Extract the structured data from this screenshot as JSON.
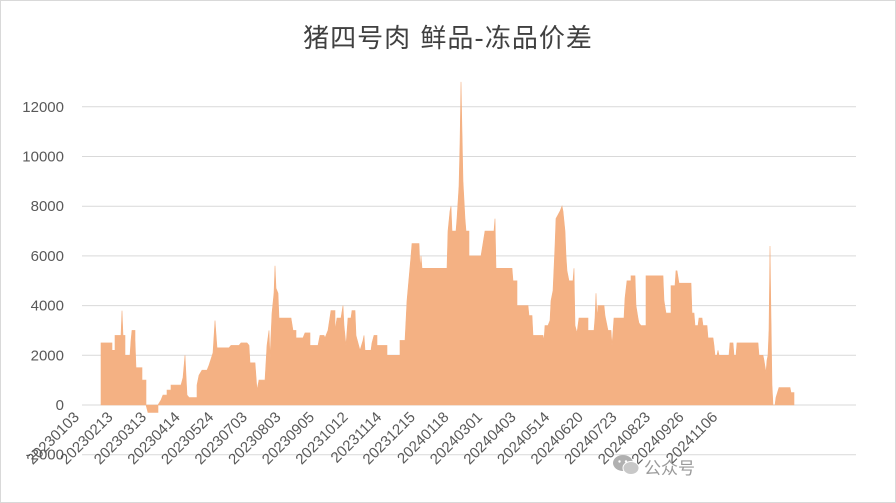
{
  "chart_data": {
    "type": "area",
    "title": "猪四号肉 鲜品-冻品价差",
    "ylim": [
      -2000,
      13000
    ],
    "yticks": [
      -2000,
      0,
      2000,
      4000,
      6000,
      8000,
      10000,
      12000
    ],
    "ytick_labels": [
      "-2000",
      "0",
      "2000",
      "4000",
      "6000",
      "8000",
      "10000",
      "12000"
    ],
    "xtick_labels": [
      "20230103",
      "20230213",
      "20230313",
      "20230414",
      "20230524",
      "20230703",
      "20230803",
      "20230905",
      "20231012",
      "20231114",
      "20231215",
      "20240118",
      "20240301",
      "20240403",
      "20240514",
      "20240620",
      "20240723",
      "20240823",
      "20240926",
      "20241106"
    ],
    "grid": true,
    "color": "#F4B183",
    "series_points": [
      [
        0,
        0
      ],
      [
        0,
        2500
      ],
      [
        11,
        2500
      ],
      [
        11,
        2200
      ],
      [
        14,
        2200
      ],
      [
        14,
        2800
      ],
      [
        20,
        2800
      ],
      [
        21,
        3800
      ],
      [
        22,
        2800
      ],
      [
        24,
        2800
      ],
      [
        24,
        2000
      ],
      [
        29,
        2000
      ],
      [
        30,
        2600
      ],
      [
        31,
        3000
      ],
      [
        34,
        3000
      ],
      [
        34,
        2600
      ],
      [
        35,
        1500
      ],
      [
        41,
        1500
      ],
      [
        41,
        1000
      ],
      [
        45,
        1000
      ],
      [
        45,
        0
      ],
      [
        47,
        -300
      ],
      [
        57,
        -300
      ],
      [
        57,
        0
      ],
      [
        60,
        200
      ],
      [
        62,
        400
      ],
      [
        66,
        400
      ],
      [
        66,
        600
      ],
      [
        70,
        600
      ],
      [
        70,
        800
      ],
      [
        80,
        800
      ],
      [
        82,
        1100
      ],
      [
        84,
        2000
      ],
      [
        86,
        400
      ],
      [
        88,
        300
      ],
      [
        96,
        300
      ],
      [
        96,
        800
      ],
      [
        98,
        1200
      ],
      [
        101,
        1400
      ],
      [
        106,
        1400
      ],
      [
        108,
        1600
      ],
      [
        112,
        2100
      ],
      [
        114,
        3400
      ],
      [
        116,
        2300
      ],
      [
        128,
        2300
      ],
      [
        130,
        2400
      ],
      [
        138,
        2400
      ],
      [
        140,
        2500
      ],
      [
        146,
        2500
      ],
      [
        148,
        2400
      ],
      [
        149,
        1700
      ],
      [
        154,
        1700
      ],
      [
        156,
        600
      ],
      [
        158,
        1000
      ],
      [
        164,
        1000
      ],
      [
        166,
        2400
      ],
      [
        168,
        3000
      ],
      [
        169,
        1900
      ],
      [
        171,
        3700
      ],
      [
        173,
        4500
      ],
      [
        174,
        5600
      ],
      [
        175,
        4700
      ],
      [
        177,
        4500
      ],
      [
        178,
        3500
      ],
      [
        190,
        3500
      ],
      [
        192,
        3000
      ],
      [
        195,
        3000
      ],
      [
        195,
        2700
      ],
      [
        202,
        2700
      ],
      [
        204,
        2900
      ],
      [
        209,
        2900
      ],
      [
        209,
        2400
      ],
      [
        217,
        2400
      ],
      [
        219,
        2800
      ],
      [
        223,
        2800
      ],
      [
        224,
        2700
      ],
      [
        227,
        3000
      ],
      [
        230,
        3800
      ],
      [
        234,
        3800
      ],
      [
        234,
        3000
      ],
      [
        236,
        3500
      ],
      [
        240,
        3500
      ],
      [
        242,
        4000
      ],
      [
        243,
        3200
      ],
      [
        245,
        2400
      ],
      [
        247,
        3500
      ],
      [
        250,
        3500
      ],
      [
        251,
        3800
      ],
      [
        254,
        3800
      ],
      [
        255,
        2800
      ],
      [
        259,
        2200
      ],
      [
        262,
        2600
      ],
      [
        263,
        2800
      ],
      [
        264,
        2200
      ],
      [
        270,
        2200
      ],
      [
        271,
        2500
      ],
      [
        273,
        2800
      ],
      [
        276,
        2800
      ],
      [
        276,
        2400
      ],
      [
        286,
        2400
      ],
      [
        286,
        2000
      ],
      [
        299,
        2000
      ],
      [
        299,
        2600
      ],
      [
        304,
        2600
      ],
      [
        306,
        4200
      ],
      [
        310,
        6000
      ],
      [
        311,
        6500
      ],
      [
        318,
        6500
      ],
      [
        319,
        5500
      ],
      [
        320,
        6000
      ],
      [
        321,
        5500
      ],
      [
        325,
        5500
      ],
      [
        325,
        5500
      ],
      [
        346,
        5500
      ],
      [
        347,
        7000
      ],
      [
        349,
        7800
      ],
      [
        350,
        8000
      ],
      [
        351,
        7000
      ],
      [
        355,
        7000
      ],
      [
        356,
        7500
      ],
      [
        358,
        8800
      ],
      [
        359,
        10500
      ],
      [
        360,
        13000
      ],
      [
        361,
        11000
      ],
      [
        362,
        9000
      ],
      [
        364,
        7500
      ],
      [
        365,
        7000
      ],
      [
        368,
        7000
      ],
      [
        368,
        6000
      ],
      [
        380,
        6000
      ],
      [
        382,
        6500
      ],
      [
        384,
        7000
      ],
      [
        393,
        7000
      ],
      [
        394,
        7500
      ],
      [
        395,
        5500
      ],
      [
        411,
        5500
      ],
      [
        412,
        5000
      ],
      [
        416,
        5000
      ],
      [
        416,
        4000
      ],
      [
        427,
        4000
      ],
      [
        428,
        3600
      ],
      [
        431,
        3600
      ],
      [
        432,
        2800
      ],
      [
        442,
        2800
      ],
      [
        443,
        2600
      ],
      [
        444,
        3200
      ],
      [
        447,
        3200
      ],
      [
        449,
        3400
      ],
      [
        450,
        4200
      ],
      [
        452,
        4600
      ],
      [
        454,
        6400
      ],
      [
        455,
        7500
      ],
      [
        459,
        7800
      ],
      [
        461,
        8000
      ],
      [
        462,
        7800
      ],
      [
        464,
        7000
      ],
      [
        465,
        6000
      ],
      [
        466,
        5400
      ],
      [
        468,
        5000
      ],
      [
        472,
        5000
      ],
      [
        473,
        5500
      ],
      [
        474,
        3200
      ],
      [
        476,
        2900
      ],
      [
        478,
        3500
      ],
      [
        487,
        3500
      ],
      [
        487,
        3000
      ],
      [
        493,
        3000
      ],
      [
        494,
        3500
      ],
      [
        495,
        4500
      ],
      [
        496,
        3500
      ],
      [
        497,
        4000
      ],
      [
        503,
        4000
      ],
      [
        504,
        3600
      ],
      [
        507,
        3000
      ],
      [
        510,
        3000
      ],
      [
        511,
        2400
      ],
      [
        513,
        3500
      ],
      [
        523,
        3500
      ],
      [
        524,
        4300
      ],
      [
        526,
        5000
      ],
      [
        530,
        5000
      ],
      [
        530,
        5200
      ],
      [
        534,
        5200
      ],
      [
        535,
        4000
      ],
      [
        537,
        3500
      ],
      [
        538,
        3300
      ],
      [
        540,
        3200
      ],
      [
        545,
        3200
      ],
      [
        545,
        5200
      ],
      [
        562,
        5200
      ],
      [
        563,
        4200
      ],
      [
        565,
        3700
      ],
      [
        570,
        3700
      ],
      [
        570,
        4800
      ],
      [
        574,
        4800
      ],
      [
        575,
        5400
      ],
      [
        576,
        5400
      ],
      [
        578,
        4900
      ],
      [
        590,
        4900
      ],
      [
        591,
        3700
      ],
      [
        593,
        3700
      ],
      [
        594,
        3200
      ],
      [
        597,
        3200
      ],
      [
        598,
        3500
      ],
      [
        601,
        3500
      ],
      [
        602,
        3200
      ],
      [
        606,
        3200
      ],
      [
        607,
        2700
      ],
      [
        612,
        2700
      ],
      [
        613,
        2400
      ],
      [
        614,
        2000
      ],
      [
        616,
        2000
      ],
      [
        617,
        2200
      ],
      [
        618,
        2000
      ],
      [
        628,
        2000
      ],
      [
        629,
        2500
      ],
      [
        632,
        2500
      ],
      [
        633,
        2000
      ],
      [
        635,
        2000
      ],
      [
        636,
        2500
      ],
      [
        657,
        2500
      ],
      [
        658,
        2000
      ],
      [
        662,
        2000
      ],
      [
        663,
        1800
      ],
      [
        665,
        1300
      ],
      [
        666,
        1800
      ],
      [
        667,
        2000
      ],
      [
        668,
        3000
      ],
      [
        669,
        6400
      ],
      [
        670,
        3500
      ],
      [
        671,
        800
      ],
      [
        672,
        0
      ],
      [
        674,
        0
      ],
      [
        675,
        300
      ],
      [
        678,
        700
      ],
      [
        689,
        700
      ],
      [
        690,
        500
      ],
      [
        693,
        500
      ],
      [
        693,
        0
      ]
    ]
  },
  "watermark": {
    "text": "公众号"
  }
}
